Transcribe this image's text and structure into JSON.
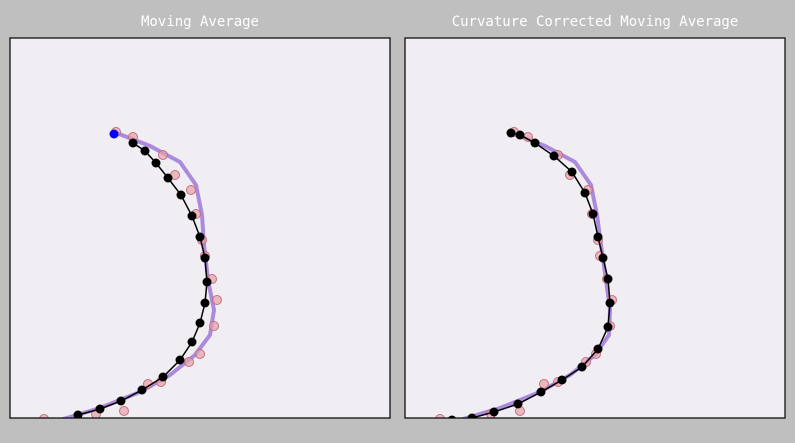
{
  "chart_data": [
    {
      "type": "scatter",
      "title": "Moving Average",
      "xlim": [
        0,
        380
      ],
      "ylim": [
        0,
        380
      ],
      "series": [
        {
          "color": "#9a70d8",
          "style": "line",
          "x": [
            104,
            140,
            170,
            186,
            192,
            194,
            198,
            204,
            200,
            185,
            160,
            130,
            90,
            50
          ],
          "values": [
            286,
            272,
            256,
            233,
            203,
            173,
            138,
            108,
            83,
            63,
            43,
            26,
            10,
            -2
          ]
        },
        {
          "color": "#e8a0a8",
          "style": "markers",
          "x": [
            106,
            123,
            153,
            165,
            181,
            186,
            192,
            195,
            202,
            207,
            204,
            190,
            179,
            151,
            138,
            114,
            86,
            34
          ],
          "values": [
            286,
            281,
            263,
            243,
            228,
            204,
            178,
            162,
            139,
            118,
            92,
            64,
            56,
            36,
            34,
            7,
            4,
            -1
          ]
        },
        {
          "color": "#000000",
          "style": "line+markers",
          "x": [
            123,
            135,
            146,
            158,
            171,
            182,
            190,
            195,
            197,
            195,
            190,
            182,
            170,
            153,
            132,
            111,
            90,
            68
          ],
          "values": [
            275,
            267,
            255,
            240,
            223,
            202,
            181,
            160,
            136,
            115,
            95,
            76,
            58,
            41,
            28,
            17,
            9,
            3
          ]
        },
        {
          "color": "#0000ff",
          "style": "markers",
          "x": [
            104
          ],
          "values": [
            284
          ]
        }
      ]
    },
    {
      "type": "scatter",
      "title": "Curvature Corrected Moving Average",
      "xlim": [
        0,
        380
      ],
      "ylim": [
        0,
        380
      ],
      "series": [
        {
          "color": "#9a70d8",
          "style": "line",
          "x": [
            104,
            140,
            170,
            186,
            192,
            196,
            201,
            205,
            204,
            190,
            165,
            135,
            95,
            55
          ],
          "values": [
            286,
            272,
            256,
            233,
            203,
            173,
            138,
            108,
            83,
            63,
            43,
            26,
            10,
            -2
          ]
        },
        {
          "color": "#e8a0a8",
          "style": "markers",
          "x": [
            109,
            123,
            153,
            165,
            183,
            187,
            193,
            195,
            202,
            207,
            205,
            191,
            181,
            153,
            139,
            115,
            86,
            35
          ],
          "values": [
            286,
            281,
            263,
            243,
            228,
            204,
            178,
            162,
            139,
            118,
            92,
            64,
            56,
            36,
            34,
            7,
            4,
            -1
          ]
        },
        {
          "color": "#000000",
          "style": "line+markers",
          "x": [
            106,
            115,
            130,
            149,
            167,
            180,
            188,
            193,
            198,
            203,
            205,
            203,
            193,
            177,
            157,
            136,
            113,
            89,
            67,
            47
          ],
          "values": [
            285,
            283,
            275,
            262,
            246,
            225,
            204,
            181,
            160,
            139,
            115,
            91,
            69,
            51,
            38,
            26,
            14,
            6,
            0,
            -2
          ]
        }
      ]
    }
  ]
}
